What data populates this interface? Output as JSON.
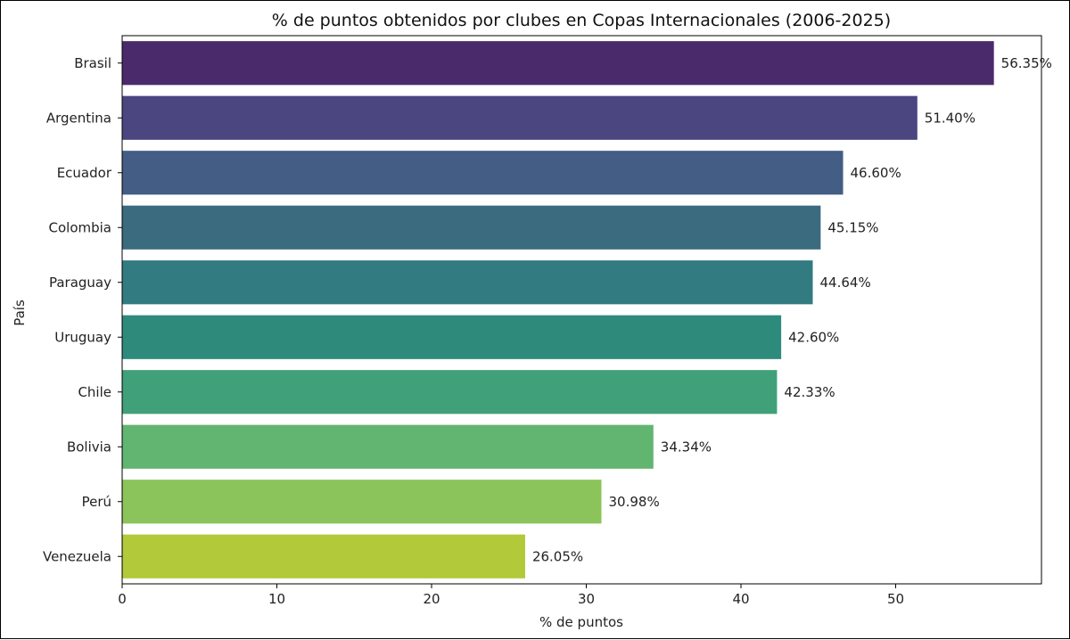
{
  "chart_data": {
    "type": "bar",
    "orientation": "horizontal",
    "title": "% de puntos obtenidos por clubes en Copas Internacionales (2006-2025)",
    "xlabel": "% de puntos",
    "ylabel": "País",
    "xlim": [
      0,
      59.5
    ],
    "xticks": [
      "0",
      "10",
      "20",
      "30",
      "40",
      "50"
    ],
    "grid": false,
    "categories": [
      "Brasil",
      "Argentina",
      "Ecuador",
      "Colombia",
      "Paraguay",
      "Uruguay",
      "Chile",
      "Bolivia",
      "Perú",
      "Venezuela"
    ],
    "values": [
      56.35,
      51.4,
      46.6,
      45.15,
      44.64,
      42.6,
      42.33,
      34.34,
      30.98,
      26.05
    ],
    "value_labels": [
      "56.35%",
      "51.40%",
      "46.60%",
      "45.15%",
      "44.64%",
      "42.60%",
      "42.33%",
      "34.34%",
      "30.98%",
      "26.05%"
    ],
    "colors": [
      "#4b2a6b",
      "#4b4680",
      "#435d85",
      "#3b6b7f",
      "#327b80",
      "#2e8b7c",
      "#3fa079",
      "#62b571",
      "#8bc45a",
      "#b2c93a"
    ]
  }
}
